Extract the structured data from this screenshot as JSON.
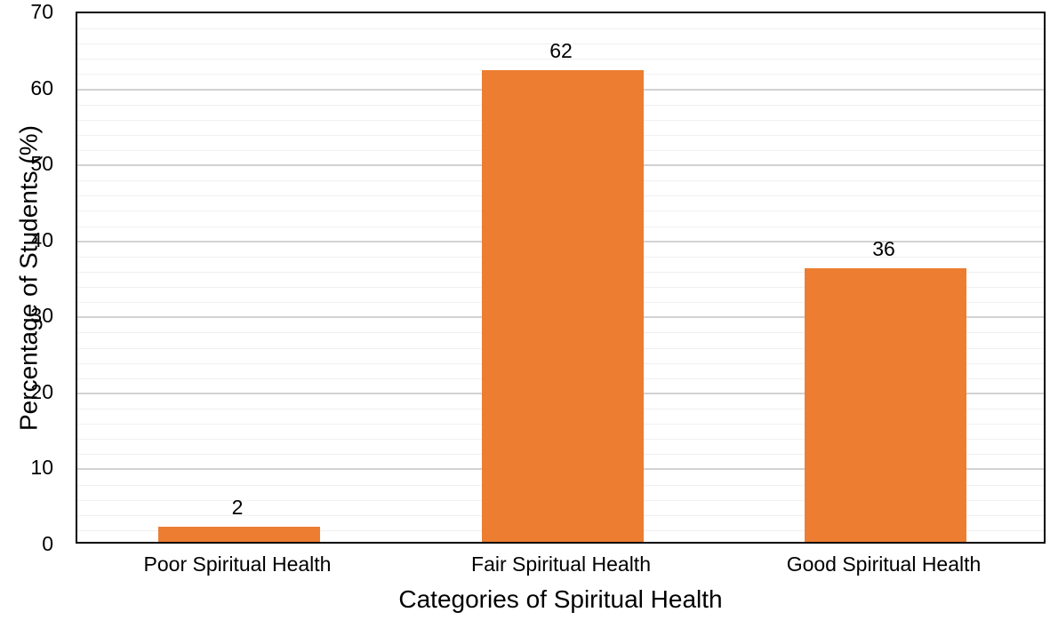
{
  "chart_data": {
    "type": "bar",
    "categories": [
      "Poor Spiritual Health",
      "Fair Spiritual Health",
      "Good Spiritual Health"
    ],
    "values": [
      2,
      62,
      36
    ],
    "data_labels": [
      "2",
      "62",
      "36"
    ],
    "title": "",
    "xlabel": "Categories of Spiritual Health",
    "ylabel": "Percentage of Students (%)",
    "ylim": [
      0,
      70
    ],
    "y_major_tick_interval": 10,
    "y_minor_tick_interval": 2,
    "y_tick_labels": [
      "0",
      "10",
      "20",
      "30",
      "40",
      "50",
      "60",
      "70"
    ],
    "grid": true,
    "legend_position": "none",
    "bar_color": "#ED7D31",
    "major_grid_color": "#D2D2D2",
    "minor_grid_color": "#F0F0F0",
    "axis_border_color": "#000000",
    "background_color": "#FFFFFF"
  }
}
